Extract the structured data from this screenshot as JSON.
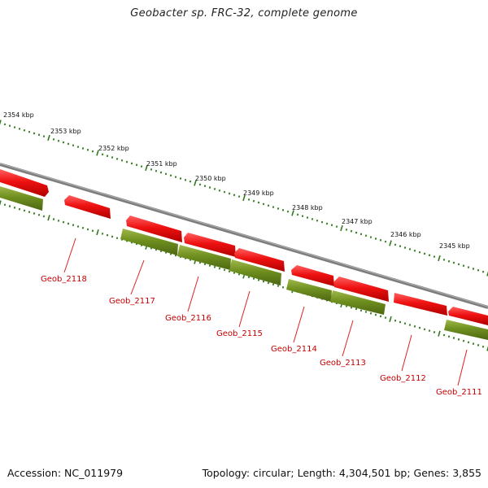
{
  "title": "Geobacter sp. FRC-32, complete genome",
  "footer": {
    "accession": "Accession: NC_011979",
    "summary": "Topology: circular; Length: 4,304,501 bp; Genes: 3,855"
  },
  "colors": {
    "backbone": "#8a8a8a",
    "forward_gene": "#ee1111",
    "reverse_gene": "#6f8f1f",
    "tick": "#2f7a1a",
    "label": "#c40000"
  },
  "kbp_labels": [
    "2354 kbp",
    "2353 kbp",
    "2352 kbp",
    "2351 kbp",
    "2350 kbp",
    "2349 kbp",
    "2348 kbp",
    "2347 kbp",
    "2346 kbp",
    "2345 kbp"
  ],
  "gene_labels": [
    "Geob_2118",
    "Geob_2117",
    "Geob_2116",
    "Geob_2115",
    "Geob_2114",
    "Geob_2113",
    "Geob_2112",
    "Geob_2111"
  ]
}
